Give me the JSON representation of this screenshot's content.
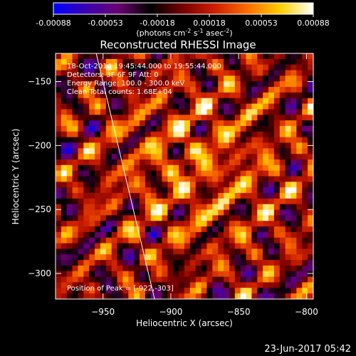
{
  "colorbar": {
    "ticks": [
      "-0.00088",
      "-0.00053",
      "-0.00018",
      "0.00018",
      "0.00053",
      "0.00088"
    ],
    "unit_prefix": "(photons cm",
    "unit_exp1": "-2",
    "unit_mid": " s",
    "unit_exp2": "-1",
    "unit_mid2": " asec",
    "unit_exp3": "-2",
    "unit_suffix": ")",
    "stops": [
      "#0000ff",
      "#3a00b0",
      "#6a0070",
      "#000000",
      "#7a0000",
      "#d02000",
      "#ff7000",
      "#ffd000",
      "#ffffff"
    ]
  },
  "footer_date": "23-Jun-2017 05:42",
  "chart_data": {
    "type": "heatmap",
    "title": "Reconstructed RHESSI Image",
    "xlabel": "Heliocentric X (arcsec)",
    "ylabel": "Heliocentric Y (arcsec)",
    "xlim": [
      -985,
      -795
    ],
    "ylim": [
      -320,
      -128
    ],
    "xticks": [
      -950,
      -900,
      -850,
      -800
    ],
    "xtick_labels": [
      "−950",
      "−900",
      "−850",
      "−800"
    ],
    "yticks": [
      -300,
      -250,
      -200,
      -150
    ],
    "ytick_labels": [
      "−300",
      "−250",
      "−200",
      "−150"
    ],
    "annotations": [
      "18-Oct-2014 19:45:44.000 to 19:55:44.000",
      "Detectors: 3F 6F 9F  Att: 0",
      "Energy Range: 100.0 - 300.0 keV",
      "Clean   Total counts: 1.68E+04"
    ],
    "peak_label": "Position of Peak = [-922,-303]",
    "peak": [
      -922,
      -303
    ],
    "limb_points": [
      [
        -955,
        -128
      ],
      [
        -912,
        -320
      ]
    ],
    "value_range": [
      -0.00088,
      0.00088
    ]
  }
}
